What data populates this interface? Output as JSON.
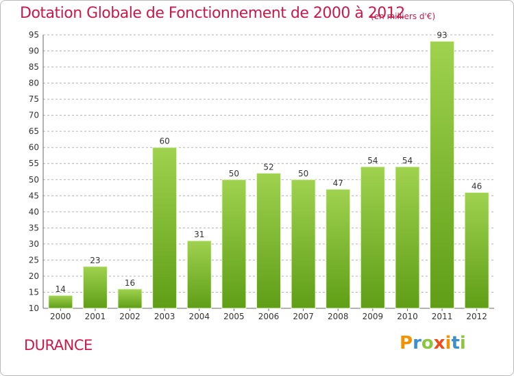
{
  "header": {
    "title": "Dotation Globale de Fonctionnement de 2000 à 2012",
    "unit": "(en milliers d'€)"
  },
  "footer": {
    "commune": "DURANCE",
    "logo": "Proxiti"
  },
  "colors": {
    "title": "#c8194a",
    "bar_top": "#9fd24f",
    "bar_bottom": "#5f9e16",
    "grid": "#b0b0b0",
    "logo_letters": [
      "#f39200",
      "#3d8ec9",
      "#8cc63f",
      "#e94e1b",
      "#f39200",
      "#3d8ec9",
      "#8cc63f"
    ]
  },
  "chart_data": {
    "type": "bar",
    "categories": [
      "2000",
      "2001",
      "2002",
      "2003",
      "2004",
      "2005",
      "2006",
      "2007",
      "2008",
      "2009",
      "2010",
      "2011",
      "2012"
    ],
    "values": [
      14,
      23,
      16,
      60,
      31,
      50,
      52,
      50,
      47,
      54,
      54,
      93,
      46
    ],
    "ylim": [
      10,
      95
    ],
    "yticks": [
      10,
      15,
      20,
      25,
      30,
      35,
      40,
      45,
      50,
      55,
      60,
      65,
      70,
      75,
      80,
      85,
      90,
      95
    ],
    "grid": true,
    "grid_style": "dashed",
    "data_labels": true
  }
}
